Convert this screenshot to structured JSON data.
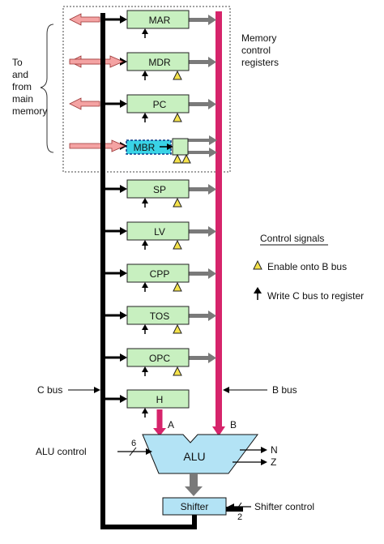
{
  "colors": {
    "register_fill": "#c8f0c0",
    "mbr_fill": "#39d3e6",
    "alu_fill": "#b3e3f5",
    "shifter_fill": "#b3e3f5",
    "b_bus": "#d6246b",
    "main_memory_arrow": "#f4a3a3",
    "c_bus": "#000000",
    "enable_triangle": "#f5e24a",
    "grey_arrow": "#7a7a7a"
  },
  "registers": [
    {
      "name": "MAR",
      "enable": false,
      "write": true,
      "memory": "out"
    },
    {
      "name": "MDR",
      "enable": true,
      "write": true,
      "memory": "both"
    },
    {
      "name": "PC",
      "enable": true,
      "write": true,
      "memory": "out"
    },
    {
      "name": "MBR",
      "enable": true,
      "write": false,
      "memory": "in"
    },
    {
      "name": "SP",
      "enable": true,
      "write": true,
      "memory": "none"
    },
    {
      "name": "LV",
      "enable": true,
      "write": true,
      "memory": "none"
    },
    {
      "name": "CPP",
      "enable": true,
      "write": true,
      "memory": "none"
    },
    {
      "name": "TOS",
      "enable": true,
      "write": true,
      "memory": "none"
    },
    {
      "name": "OPC",
      "enable": true,
      "write": true,
      "memory": "none"
    },
    {
      "name": "H",
      "enable": false,
      "write": true,
      "memory": "none"
    }
  ],
  "labels": {
    "to_from_memory": [
      "To",
      "and",
      "from",
      "main",
      "memory"
    ],
    "memory_control": [
      "Memory",
      "control",
      "registers"
    ],
    "control_signals_title": "Control signals",
    "enable_legend": "Enable onto B bus",
    "write_legend": "Write C bus to register",
    "c_bus": "C bus",
    "b_bus": "B bus",
    "alu_control": "ALU control",
    "alu_control_bits": "6",
    "alu": "ALU",
    "alu_input_a": "A",
    "alu_input_b": "B",
    "flag_n": "N",
    "flag_z": "Z",
    "shifter": "Shifter",
    "shifter_control": "Shifter control",
    "shifter_control_bits": "2"
  }
}
